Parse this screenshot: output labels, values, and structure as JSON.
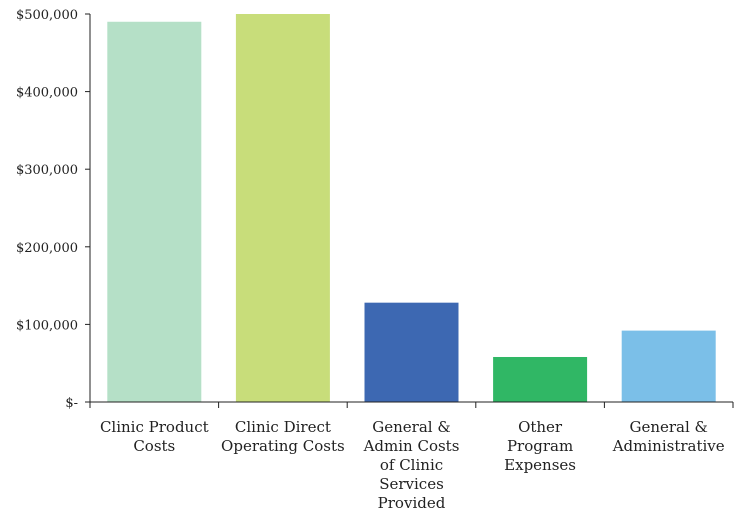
{
  "chart_data": {
    "type": "bar",
    "categories": [
      "Clinic Product\nCosts",
      "Clinic Direct\nOperating Costs",
      "General &\nAdmin Costs\nof Clinic\nServices\nProvided",
      "Other\nProgram\nExpenses",
      "General &\nAdministrative"
    ],
    "values": [
      490000,
      500000,
      128000,
      58000,
      92000
    ],
    "colors": [
      "#b5e0c7",
      "#c8dd7a",
      "#3d68b2",
      "#30b765",
      "#7bbfe8"
    ],
    "ylim": [
      0,
      500000
    ],
    "yticks": [
      0,
      100000,
      200000,
      300000,
      400000,
      500000
    ],
    "ytick_labels": [
      "$-",
      "$100,000",
      "$200,000",
      "$300,000",
      "$400,000",
      "$500,000"
    ],
    "title": "",
    "xlabel": "",
    "ylabel": "",
    "grid": false,
    "legend": false
  }
}
